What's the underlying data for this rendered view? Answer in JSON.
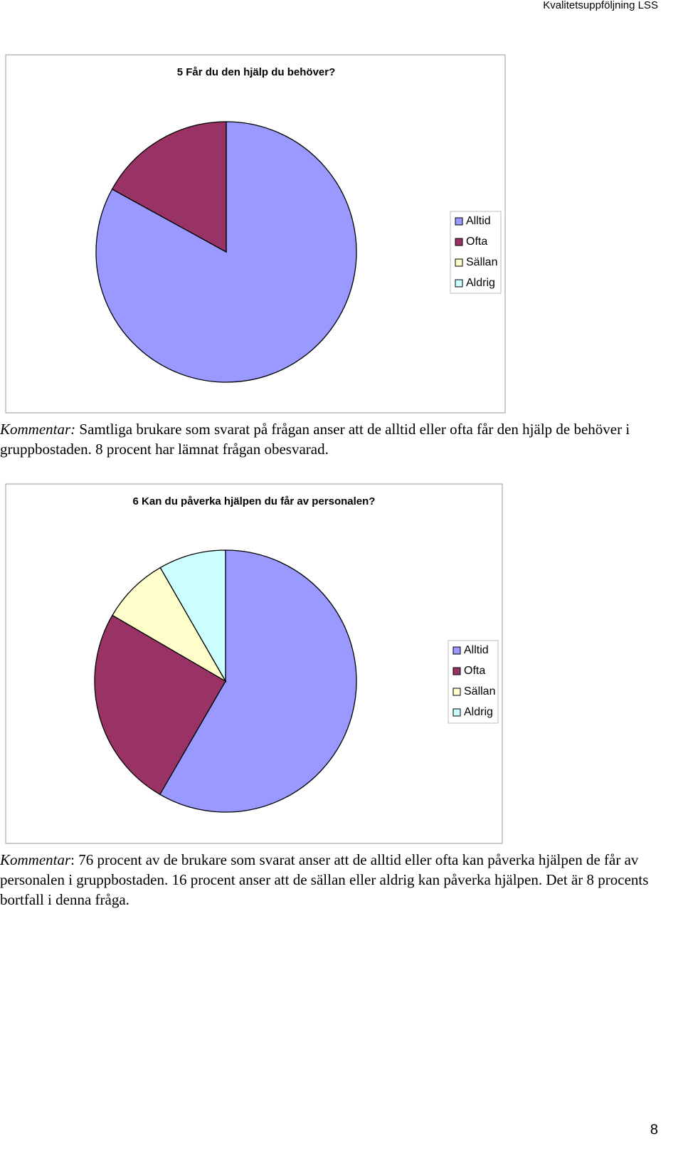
{
  "header": "Kvalitetsuppföljning LSS",
  "page_number": "8",
  "chart_data": [
    {
      "type": "pie",
      "title": "5 Får du den hjälp du behöver?",
      "categories": [
        "Alltid",
        "Ofta",
        "Sällan",
        "Aldrig"
      ],
      "values": [
        83,
        17,
        0,
        0
      ],
      "colors": [
        "#9999ff",
        "#993366",
        "#ffffcc",
        "#ccffff"
      ]
    },
    {
      "type": "pie",
      "title": "6 Kan du påverka hjälpen du får av personalen?",
      "categories": [
        "Alltid",
        "Ofta",
        "Sällan",
        "Aldrig"
      ],
      "values": [
        58.3,
        25,
        8.3,
        8.3
      ],
      "colors": [
        "#9999ff",
        "#993366",
        "#ffffcc",
        "#ccffff"
      ]
    }
  ],
  "comments": [
    {
      "label": "Kommentar:",
      "text": " Samtliga brukare som svarat på frågan anser att de alltid eller ofta får den hjälp de behöver i gruppbostaden. 8 procent har lämnat frågan obesvarad."
    },
    {
      "label": "Kommentar",
      "text": ": 76 procent av de brukare som svarat anser att de alltid eller ofta kan påverka hjälpen de får av personalen i gruppbostaden. 16 procent anser att de sällan eller aldrig kan påverka hjälpen. Det är 8 procents bortfall i denna fråga."
    }
  ]
}
